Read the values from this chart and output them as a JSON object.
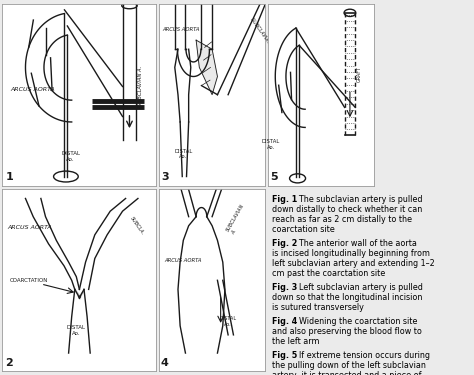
{
  "figure_width": 4.74,
  "figure_height": 3.75,
  "dpi": 100,
  "background_color": "#ebebeb",
  "line_color": "#1a1a1a",
  "captions": [
    {
      "bold": "Fig. 1",
      "text": "  The subclavian artery is pulled down distally to check whether it can reach as far as 2 cm distally to the coarctation site"
    },
    {
      "bold": "Fig. 2",
      "text": "  The anterior wall of the aorta is incised longitudinally beginning from left subclavian artery and extending 1–2 cm past the coarctation site"
    },
    {
      "bold": "Fig. 3",
      "text": "  Left subclavian artery is pulled down so that the longitudinal incision is sutured transversely"
    },
    {
      "bold": "Fig. 4",
      "text": "  Widening the coarctation site and also preserving the blood flow to the left arm"
    },
    {
      "bold": "Fig. 5",
      "text": "  If extreme tension occurs during the pulling down of the left subclavian artery, it is transected and a piece of PTFE tube is interposed"
    }
  ]
}
